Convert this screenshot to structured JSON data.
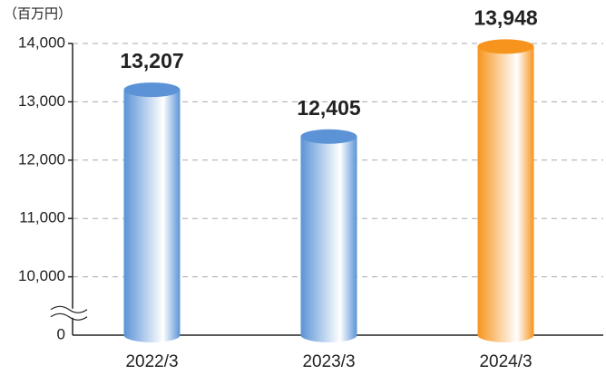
{
  "chart_data": {
    "type": "bar",
    "y_label": "（百万円）",
    "categories": [
      "2022/3",
      "2023/3",
      "2024/3"
    ],
    "values": [
      13207,
      12405,
      13948
    ],
    "value_labels": [
      "13,207",
      "12,405",
      "13,948"
    ],
    "colors": [
      "#5b93d6",
      "#5b93d6",
      "#f7941d"
    ],
    "ylim": [
      0,
      14000
    ],
    "yticks": [
      0,
      {
        "value": 10000,
        "label": "10,000"
      },
      {
        "value": 11000,
        "label": "11,000"
      },
      {
        "value": 12000,
        "label": "12,000"
      },
      {
        "value": 13000,
        "label": "13,000"
      },
      {
        "value": 14000,
        "label": "14,000"
      }
    ],
    "grid": true
  }
}
